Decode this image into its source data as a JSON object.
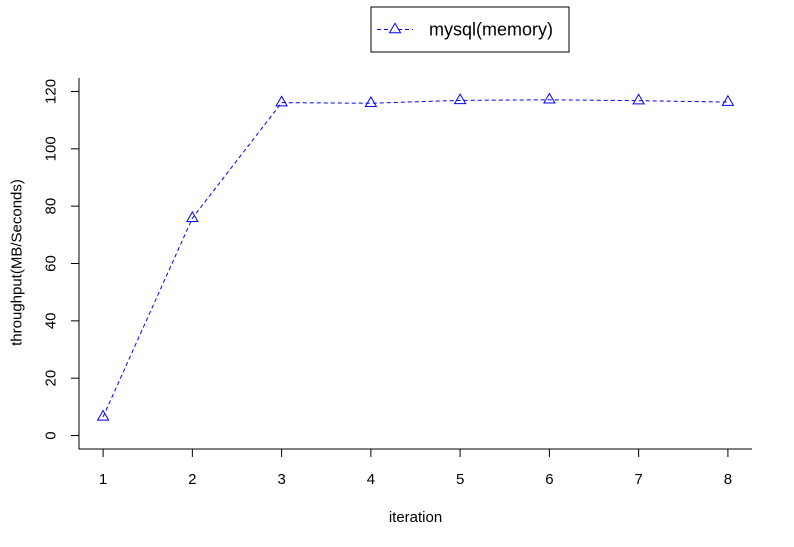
{
  "chart_data": {
    "type": "line",
    "xlabel": "iteration",
    "ylabel": "throughput(MB/Seconds)",
    "xlim": [
      0.73,
      8.27
    ],
    "ylim": [
      -4.7,
      124.7
    ],
    "x_ticks": [
      1,
      2,
      3,
      4,
      5,
      6,
      7,
      8
    ],
    "y_ticks": [
      0,
      20,
      40,
      60,
      80,
      100,
      120
    ],
    "x_tick_labels": [
      "1",
      "2",
      "3",
      "4",
      "5",
      "6",
      "7",
      "8"
    ],
    "y_tick_labels": [
      "0",
      "20",
      "40",
      "60",
      "80",
      "100",
      "120"
    ],
    "legend_position": "top-center",
    "series": [
      {
        "name": "mysql(memory)",
        "color": "#0000ff",
        "marker": "triangle",
        "line_style": "dashed",
        "x": [
          1,
          2,
          3,
          4,
          5,
          6,
          7,
          8
        ],
        "values": [
          6.5,
          75.8,
          116.1,
          115.9,
          116.9,
          117.1,
          116.8,
          116.3
        ]
      }
    ]
  }
}
